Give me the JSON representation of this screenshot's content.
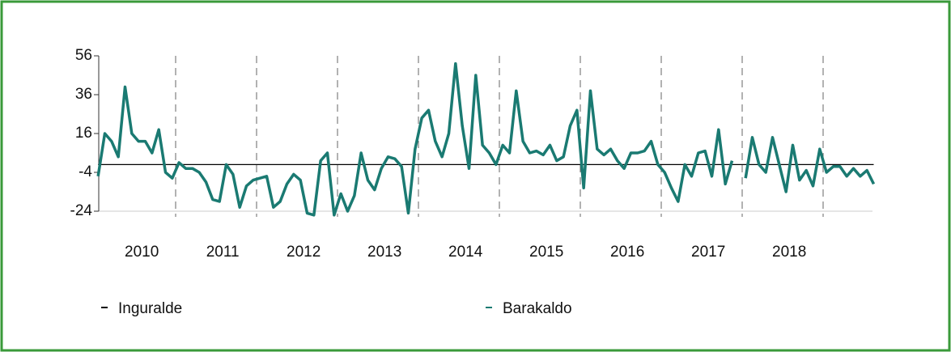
{
  "chart_data": {
    "type": "line",
    "categories": [
      null,
      null,
      null,
      null,
      null,
      null,
      "2010",
      null,
      null,
      null,
      null,
      null,
      null,
      null,
      null,
      null,
      null,
      null,
      "2011",
      null,
      null,
      null,
      null,
      null,
      null,
      null,
      null,
      null,
      null,
      null,
      "2012",
      null,
      null,
      null,
      null,
      null,
      null,
      null,
      null,
      null,
      null,
      null,
      "2013",
      null,
      null,
      null,
      null,
      null,
      null,
      null,
      null,
      null,
      null,
      null,
      "2014",
      null,
      null,
      null,
      null,
      null,
      null,
      null,
      null,
      null,
      null,
      null,
      "2015",
      null,
      null,
      null,
      null,
      null,
      null,
      null,
      null,
      null,
      null,
      null,
      "2016",
      null,
      null,
      null,
      null,
      null,
      null,
      null,
      null,
      null,
      null,
      null,
      "2017",
      null,
      null,
      null,
      null,
      null,
      null,
      null,
      null,
      null,
      null,
      null,
      "2018",
      null,
      null,
      null,
      null,
      null,
      null,
      null,
      null,
      null,
      null,
      null,
      null,
      null
    ],
    "series": [
      {
        "name": "Inguralde",
        "color": "#000000",
        "values": [
          0,
          0,
          0,
          0,
          0,
          0,
          0,
          0,
          0,
          0,
          0,
          0,
          0,
          0,
          0,
          0,
          0,
          0,
          0,
          0,
          0,
          0,
          0,
          0,
          0,
          0,
          0,
          0,
          0,
          0,
          0,
          0,
          0,
          0,
          0,
          0,
          0,
          0,
          0,
          0,
          0,
          0,
          0,
          0,
          0,
          0,
          0,
          0,
          0,
          0,
          0,
          0,
          0,
          0,
          0,
          0,
          0,
          0,
          0,
          0,
          0,
          0,
          0,
          0,
          0,
          0,
          0,
          0,
          0,
          0,
          0,
          0,
          0,
          0,
          0,
          0,
          0,
          0,
          0,
          0,
          0,
          0,
          0,
          0,
          0,
          0,
          0,
          0,
          0,
          0,
          0,
          0,
          0,
          0,
          0,
          0,
          0,
          0,
          0,
          0,
          0,
          0,
          0,
          0,
          0,
          0,
          0,
          0,
          0,
          0,
          0,
          0,
          0,
          0,
          0,
          0
        ]
      },
      {
        "name": "Barakaldo",
        "color": "#1a7a72",
        "values": [
          -6,
          16,
          12,
          4,
          40,
          16,
          12,
          12,
          6,
          18,
          -4,
          -7,
          1,
          -2,
          -2,
          -4,
          -9,
          -18,
          -19,
          0,
          -5,
          -22,
          -11,
          -8,
          -7,
          -6,
          -22,
          -19,
          -10,
          -5,
          -8,
          -25,
          -26,
          2,
          6,
          -26,
          -15,
          -24,
          -16,
          6,
          -8,
          -13,
          -2,
          4,
          3,
          -1,
          -25,
          8,
          24,
          28,
          12,
          4,
          16,
          52,
          20,
          -2,
          46,
          10,
          6,
          0,
          10,
          6,
          38,
          12,
          6,
          7,
          5,
          10,
          2,
          4,
          20,
          28,
          -12,
          38,
          8,
          5,
          8,
          2,
          -2,
          6,
          6,
          7,
          12,
          0,
          -4,
          -12,
          -19,
          0,
          -6,
          6,
          7,
          -6,
          18,
          -10,
          2,
          null,
          -7,
          14,
          0,
          -4,
          14,
          0,
          -14,
          10,
          -8,
          -3,
          -11,
          8,
          -4,
          -1,
          -1,
          -6,
          -2,
          -6,
          -3,
          -10
        ]
      }
    ],
    "ylim": [
      -24,
      56
    ],
    "yticks": [
      56,
      36,
      16,
      -4,
      -24
    ]
  }
}
